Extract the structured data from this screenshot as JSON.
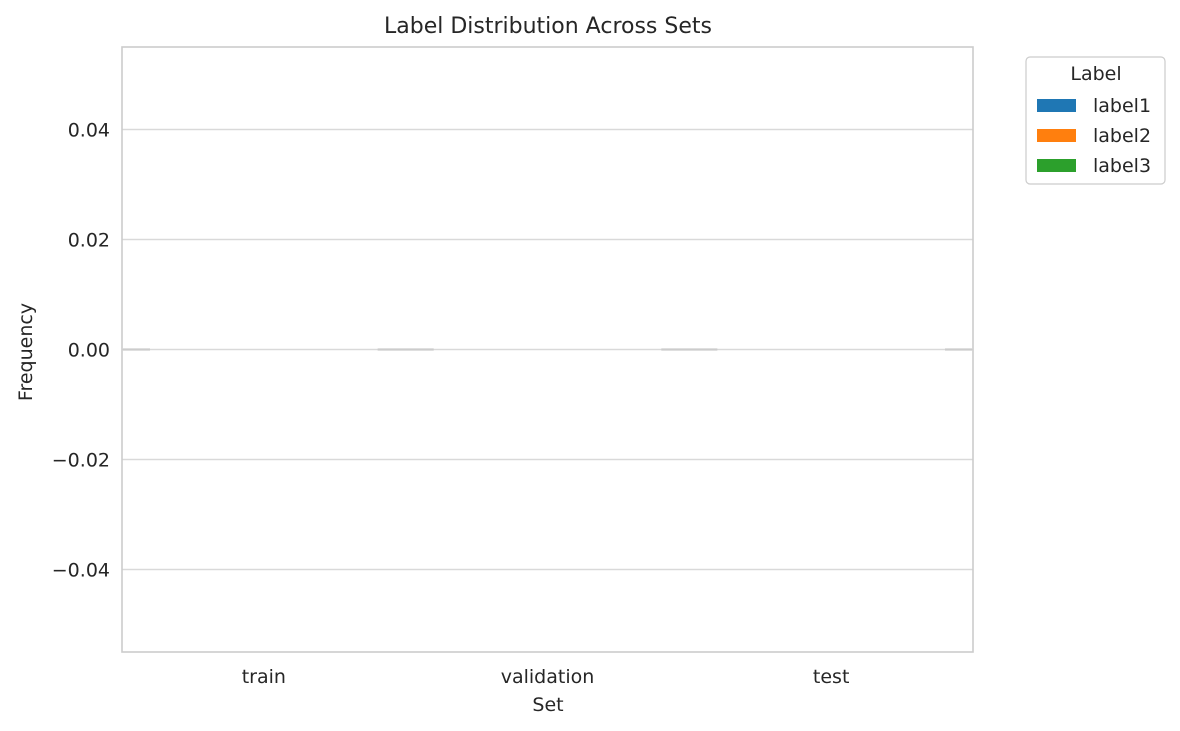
{
  "chart_data": {
    "type": "bar",
    "title": "Label Distribution Across Sets",
    "xlabel": "Set",
    "ylabel": "Frequency",
    "categories": [
      "train",
      "validation",
      "test"
    ],
    "series": [
      {
        "name": "label1",
        "values": [
          0,
          0,
          0
        ],
        "color": "#1f77b4"
      },
      {
        "name": "label2",
        "values": [
          0,
          0,
          0
        ],
        "color": "#ff7f0e"
      },
      {
        "name": "label3",
        "values": [
          0,
          0,
          0
        ],
        "color": "#2ca02c"
      }
    ],
    "ylim": [
      -0.055,
      0.055
    ],
    "yticks": [
      0.04,
      0.02,
      0.0,
      -0.02,
      -0.04
    ],
    "ytick_labels": [
      "0.04",
      "0.02",
      "0.00",
      "−0.02",
      "−0.04"
    ],
    "grid": true,
    "legend": {
      "title": "Label",
      "placement": "outside-top-right"
    },
    "colors": {
      "grid": "#d9d9d9",
      "spine": "#cccccc",
      "zero_bar": "#cccccc"
    }
  }
}
